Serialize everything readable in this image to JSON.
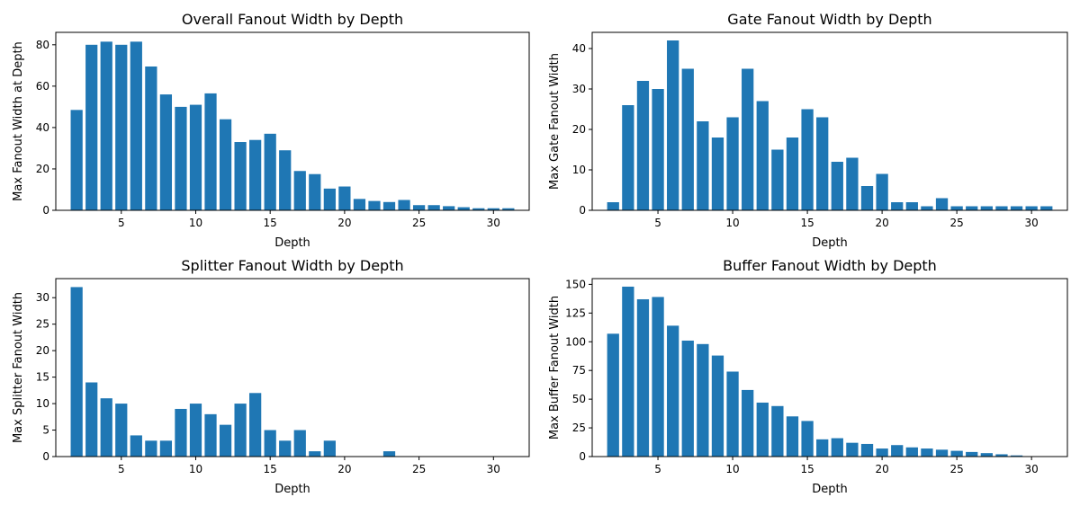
{
  "chart_data": [
    {
      "type": "bar",
      "title": "Overall Fanout Width by Depth",
      "xlabel": "Depth",
      "ylabel": "Max Fanout Width at Depth",
      "x": [
        2,
        3,
        4,
        5,
        6,
        7,
        8,
        9,
        10,
        11,
        12,
        13,
        14,
        15,
        16,
        17,
        18,
        19,
        20,
        21,
        22,
        23,
        24,
        25,
        26,
        27,
        28,
        29,
        30,
        31
      ],
      "values": [
        48.5,
        80,
        81.5,
        80,
        81.5,
        69.5,
        56,
        50,
        51,
        56.5,
        44,
        33,
        34,
        37,
        29,
        19,
        17.5,
        10.5,
        11.5,
        5.5,
        4.5,
        4,
        5,
        2.5,
        2.5,
        2,
        1.5,
        1,
        1,
        1
      ],
      "xlim": [
        0.6,
        32.4
      ],
      "ylim": [
        0,
        86
      ],
      "xticks": [
        5,
        10,
        15,
        20,
        25,
        30
      ],
      "yticks": [
        0,
        20,
        40,
        60,
        80
      ],
      "color": "#1f77b4"
    },
    {
      "type": "bar",
      "title": "Gate Fanout Width by Depth",
      "xlabel": "Depth",
      "ylabel": "Max Gate Fanout Width",
      "x": [
        2,
        3,
        4,
        5,
        6,
        7,
        8,
        9,
        10,
        11,
        12,
        13,
        14,
        15,
        16,
        17,
        18,
        19,
        20,
        21,
        22,
        23,
        24,
        25,
        26,
        27,
        28,
        29,
        30,
        31
      ],
      "values": [
        2,
        26,
        32,
        30,
        42,
        35,
        22,
        18,
        23,
        35,
        27,
        15,
        18,
        25,
        23,
        12,
        13,
        6,
        9,
        2,
        2,
        1,
        3,
        1,
        1,
        1,
        1,
        1,
        1,
        1
      ],
      "xlim": [
        0.6,
        32.4
      ],
      "ylim": [
        0,
        44
      ],
      "xticks": [
        5,
        10,
        15,
        20,
        25,
        30
      ],
      "yticks": [
        0,
        10,
        20,
        30,
        40
      ],
      "color": "#1f77b4"
    },
    {
      "type": "bar",
      "title": "Splitter Fanout Width by Depth",
      "xlabel": "Depth",
      "ylabel": "Max Splitter Fanout Width",
      "x": [
        2,
        3,
        4,
        5,
        6,
        7,
        8,
        9,
        10,
        11,
        12,
        13,
        14,
        15,
        16,
        17,
        18,
        19,
        20,
        21,
        22,
        23,
        24,
        25,
        26,
        27,
        28,
        29,
        30,
        31
      ],
      "values": [
        32,
        14,
        11,
        10,
        4,
        3,
        3,
        9,
        10,
        8,
        6,
        10,
        12,
        5,
        3,
        5,
        1,
        3,
        0,
        0,
        0,
        1,
        0,
        0,
        0,
        0,
        0,
        0,
        0,
        0
      ],
      "xlim": [
        0.6,
        32.4
      ],
      "ylim": [
        0,
        33.6
      ],
      "xticks": [
        5,
        10,
        15,
        20,
        25,
        30
      ],
      "yticks": [
        0,
        5,
        10,
        15,
        20,
        25,
        30
      ],
      "color": "#1f77b4"
    },
    {
      "type": "bar",
      "title": "Buffer Fanout Width by Depth",
      "xlabel": "Depth",
      "ylabel": "Max Buffer Fanout Width",
      "x": [
        2,
        3,
        4,
        5,
        6,
        7,
        8,
        9,
        10,
        11,
        12,
        13,
        14,
        15,
        16,
        17,
        18,
        19,
        20,
        21,
        22,
        23,
        24,
        25,
        26,
        27,
        28,
        29,
        30,
        31
      ],
      "values": [
        107,
        148,
        137,
        139,
        114,
        101,
        98,
        88,
        74,
        58,
        47,
        44,
        35,
        31,
        15,
        16,
        12,
        11,
        7,
        10,
        8,
        7,
        6,
        5,
        4,
        3,
        2,
        1,
        0,
        0
      ],
      "xlim": [
        0.6,
        32.4
      ],
      "ylim": [
        0,
        155
      ],
      "xticks": [
        5,
        10,
        15,
        20,
        25,
        30
      ],
      "yticks": [
        0,
        25,
        50,
        75,
        100,
        125,
        150
      ],
      "color": "#1f77b4"
    }
  ]
}
